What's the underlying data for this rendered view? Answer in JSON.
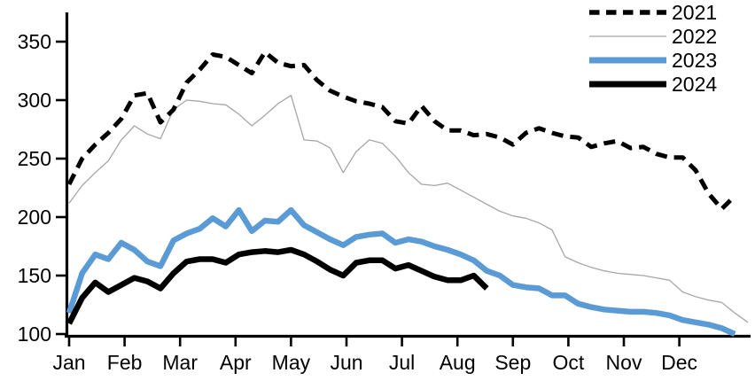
{
  "chart_data": {
    "type": "line",
    "title": "",
    "x_axis": {
      "label": "",
      "tick_labels": [
        "Jan",
        "Feb",
        "Mar",
        "Apr",
        "May",
        "Jun",
        "Jul",
        "Aug",
        "Sep",
        "Oct",
        "Nov",
        "Dec"
      ],
      "unit": "month-of-year, weekly data points"
    },
    "y_axis": {
      "label": "",
      "tick_labels": [
        "100",
        "150",
        "200",
        "250",
        "300",
        "350"
      ],
      "ticks": [
        100,
        150,
        200,
        250,
        300,
        350
      ],
      "range": [
        100,
        375
      ],
      "grid": "off"
    },
    "legend": {
      "position": "top-right",
      "entries": [
        "2021",
        "2022",
        "2023",
        "2024"
      ]
    },
    "colors": {
      "series_2021": "#000000",
      "series_2022": "#a6a6a6",
      "series_2023": "#5b9bd5",
      "series_2024": "#000000",
      "axis": "#000000",
      "background": "#ffffff"
    },
    "series": [
      {
        "name": "2021",
        "style": "dashed",
        "color": "#000000",
        "line_width": 5,
        "values": [
          228,
          250,
          262,
          272,
          284,
          304,
          306,
          281,
          292,
          315,
          326,
          339,
          337,
          330,
          323,
          341,
          332,
          329,
          330,
          317,
          308,
          303,
          299,
          297,
          294,
          282,
          280,
          295,
          282,
          274,
          274,
          270,
          271,
          268,
          262,
          272,
          276,
          272,
          269,
          268,
          260,
          263,
          265,
          259,
          260,
          254,
          251,
          251,
          240,
          220,
          207,
          218
        ]
      },
      {
        "name": "2022",
        "style": "solid",
        "color": "#a6a6a6",
        "line_width": 1.3,
        "values": [
          212,
          227,
          238,
          248,
          266,
          278,
          271,
          267,
          292,
          300,
          299,
          297,
          296,
          288,
          278,
          287,
          297,
          304,
          266,
          265,
          259,
          238,
          256,
          266,
          263,
          252,
          238,
          228,
          227,
          229,
          223,
          217,
          211,
          205,
          201,
          199,
          195,
          189,
          166,
          161,
          157,
          154,
          152,
          151,
          150,
          148,
          146,
          136,
          132,
          129,
          127,
          118,
          110
        ]
      },
      {
        "name": "2023",
        "style": "solid",
        "color": "#5b9bd5",
        "line_width": 6.5,
        "values": [
          118,
          152,
          168,
          164,
          178,
          172,
          162,
          158,
          180,
          186,
          190,
          199,
          192,
          206,
          188,
          197,
          196,
          206,
          193,
          187,
          181,
          176,
          183,
          185,
          186,
          178,
          181,
          179,
          175,
          172,
          168,
          163,
          154,
          150,
          142,
          140,
          139,
          133,
          133,
          126,
          123,
          121,
          120,
          119,
          119,
          118,
          116,
          112,
          110,
          108,
          105,
          100
        ]
      },
      {
        "name": "2024",
        "style": "solid",
        "color": "#000000",
        "line_width": 6.5,
        "values": [
          109,
          131,
          144,
          136,
          142,
          148,
          145,
          139,
          152,
          162,
          164,
          164,
          161,
          168,
          170,
          171,
          170,
          172,
          168,
          162,
          155,
          150,
          161,
          163,
          163,
          156,
          159,
          154,
          149,
          146,
          146,
          150,
          139
        ]
      }
    ]
  }
}
